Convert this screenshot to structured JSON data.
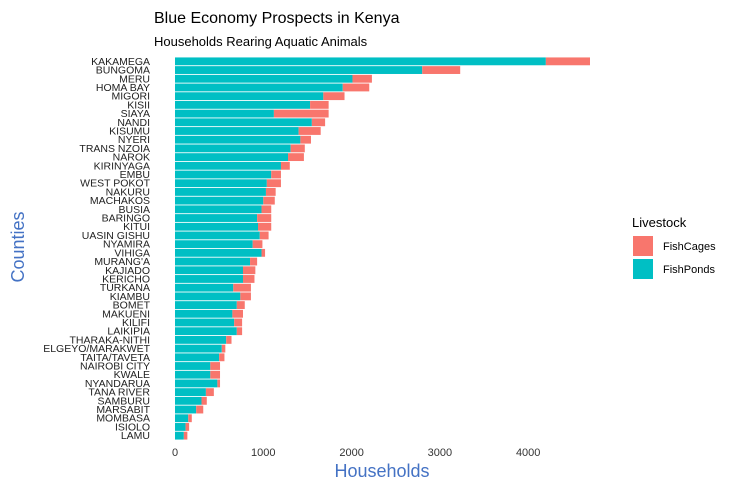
{
  "chart_data": {
    "type": "bar",
    "orientation": "horizontal",
    "stacked": true,
    "title": "Blue Economy Prospects in Kenya",
    "subtitle": "Households Rearing Aquatic Animals",
    "xlabel": "Households",
    "ylabel": "Counties",
    "xlim": [
      0,
      4700
    ],
    "xticks": [
      0,
      1000,
      2000,
      3000,
      4000
    ],
    "grid": false,
    "legend": {
      "title": "Livestock",
      "position": "right"
    },
    "categories": [
      "KAKAMEGA",
      "BUNGOMA",
      "MERU",
      "HOMA BAY",
      "MIGORI",
      "KISII",
      "SIAYA",
      "NANDI",
      "KISUMU",
      "NYERI",
      "TRANS NZOIA",
      "NAROK",
      "KIRINYAGA",
      "EMBU",
      "WEST POKOT",
      "NAKURU",
      "MACHAKOS",
      "BUSIA",
      "BARINGO",
      "KITUI",
      "UASIN GISHU",
      "NYAMIRA",
      "VIHIGA",
      "MURANG'A",
      "KAJIADO",
      "KERICHO",
      "TURKANA",
      "KIAMBU",
      "BOMET",
      "MAKUENI",
      "KILIFI",
      "LAIKIPIA",
      "THARAKA-NITHI",
      "ELGEYO/MARAKWET",
      "TAITA/TAVETA",
      "NAIROBI CITY",
      "KWALE",
      "NYANDARUA",
      "TANA RIVER",
      "SAMBURU",
      "MARSABIT",
      "MOMBASA",
      "ISIOLO",
      "LAMU"
    ],
    "series": [
      {
        "name": "FishCages",
        "color": "#F8766D",
        "values": [
          500,
          430,
          220,
          300,
          240,
          210,
          620,
          150,
          250,
          120,
          160,
          180,
          100,
          110,
          160,
          110,
          130,
          110,
          160,
          150,
          100,
          110,
          40,
          80,
          140,
          130,
          200,
          120,
          90,
          120,
          90,
          60,
          60,
          40,
          60,
          110,
          110,
          30,
          90,
          60,
          80,
          40,
          40,
          40
        ]
      },
      {
        "name": "FishPonds",
        "color": "#00BFC4",
        "values": [
          4200,
          2800,
          2010,
          1900,
          1680,
          1530,
          1120,
          1550,
          1400,
          1420,
          1310,
          1280,
          1200,
          1090,
          1040,
          1030,
          1000,
          980,
          930,
          940,
          960,
          880,
          980,
          850,
          770,
          770,
          660,
          740,
          700,
          650,
          670,
          700,
          580,
          530,
          500,
          400,
          400,
          480,
          350,
          300,
          240,
          150,
          120,
          100
        ]
      }
    ]
  }
}
